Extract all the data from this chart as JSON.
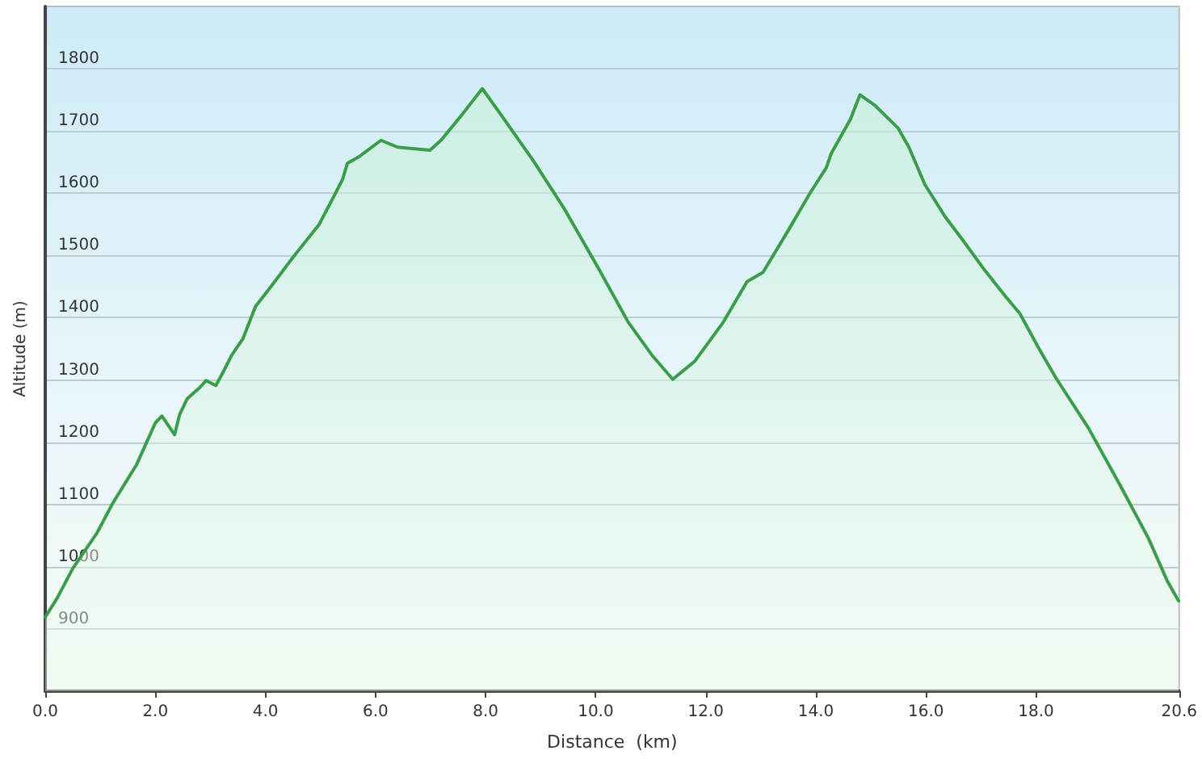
{
  "chart_data": {
    "type": "area",
    "xlabel": "Distance  (km)",
    "ylabel": "Altitude (m)",
    "xlim": [
      0,
      20.6
    ],
    "ylim": [
      800,
      1900
    ],
    "xticks": [
      {
        "value": 0,
        "label": "0.0"
      },
      {
        "value": 2,
        "label": "2.0"
      },
      {
        "value": 4,
        "label": "4.0"
      },
      {
        "value": 6,
        "label": "6.0"
      },
      {
        "value": 8,
        "label": "8.0"
      },
      {
        "value": 10,
        "label": "10.0"
      },
      {
        "value": 12,
        "label": "12.0"
      },
      {
        "value": 14,
        "label": "14.0"
      },
      {
        "value": 16,
        "label": "16.0"
      },
      {
        "value": 18,
        "label": "18.0"
      },
      {
        "value": 20.6,
        "label": "20.6"
      }
    ],
    "yticks": [
      900,
      1000,
      1100,
      1200,
      1300,
      1400,
      1500,
      1600,
      1700,
      1800
    ],
    "grid": "y",
    "marker": "none",
    "line_style": "solid",
    "series": [
      {
        "color": "#3a9d4a",
        "x": [
          0,
          0.22,
          0.5,
          0.94,
          1.22,
          1.66,
          2.0,
          2.12,
          2.35,
          2.44,
          2.58,
          2.81,
          2.92,
          3.1,
          3.24,
          3.39,
          3.59,
          3.82,
          4.1,
          4.5,
          4.97,
          5.25,
          5.4,
          5.49,
          5.69,
          6.1,
          6.4,
          6.99,
          7.19,
          7.57,
          7.94,
          8.28,
          8.86,
          9.43,
          10.07,
          10.59,
          11.02,
          11.4,
          11.8,
          12.32,
          12.75,
          13.04,
          13.47,
          13.9,
          14.19,
          14.28,
          14.63,
          14.8,
          15.06,
          15.49,
          15.69,
          15.98,
          16.35,
          16.64,
          17.07,
          17.42,
          17.71,
          18.08,
          18.37,
          18.95,
          19.52,
          20.04,
          20.39,
          20.59
        ],
        "values": [
          919,
          950,
          997,
          1054,
          1101,
          1164,
          1231,
          1242,
          1212,
          1244,
          1270,
          1288,
          1299,
          1291,
          1314,
          1340,
          1366,
          1418,
          1450,
          1497,
          1549,
          1596,
          1622,
          1648,
          1658,
          1685,
          1674,
          1669,
          1685,
          1726,
          1768,
          1726,
          1653,
          1575,
          1476,
          1393,
          1340,
          1301,
          1330,
          1393,
          1458,
          1473,
          1536,
          1601,
          1641,
          1664,
          1719,
          1758,
          1742,
          1705,
          1674,
          1614,
          1562,
          1528,
          1476,
          1437,
          1406,
          1346,
          1302,
          1223,
          1132,
          1046,
          976,
          945
        ]
      }
    ]
  }
}
